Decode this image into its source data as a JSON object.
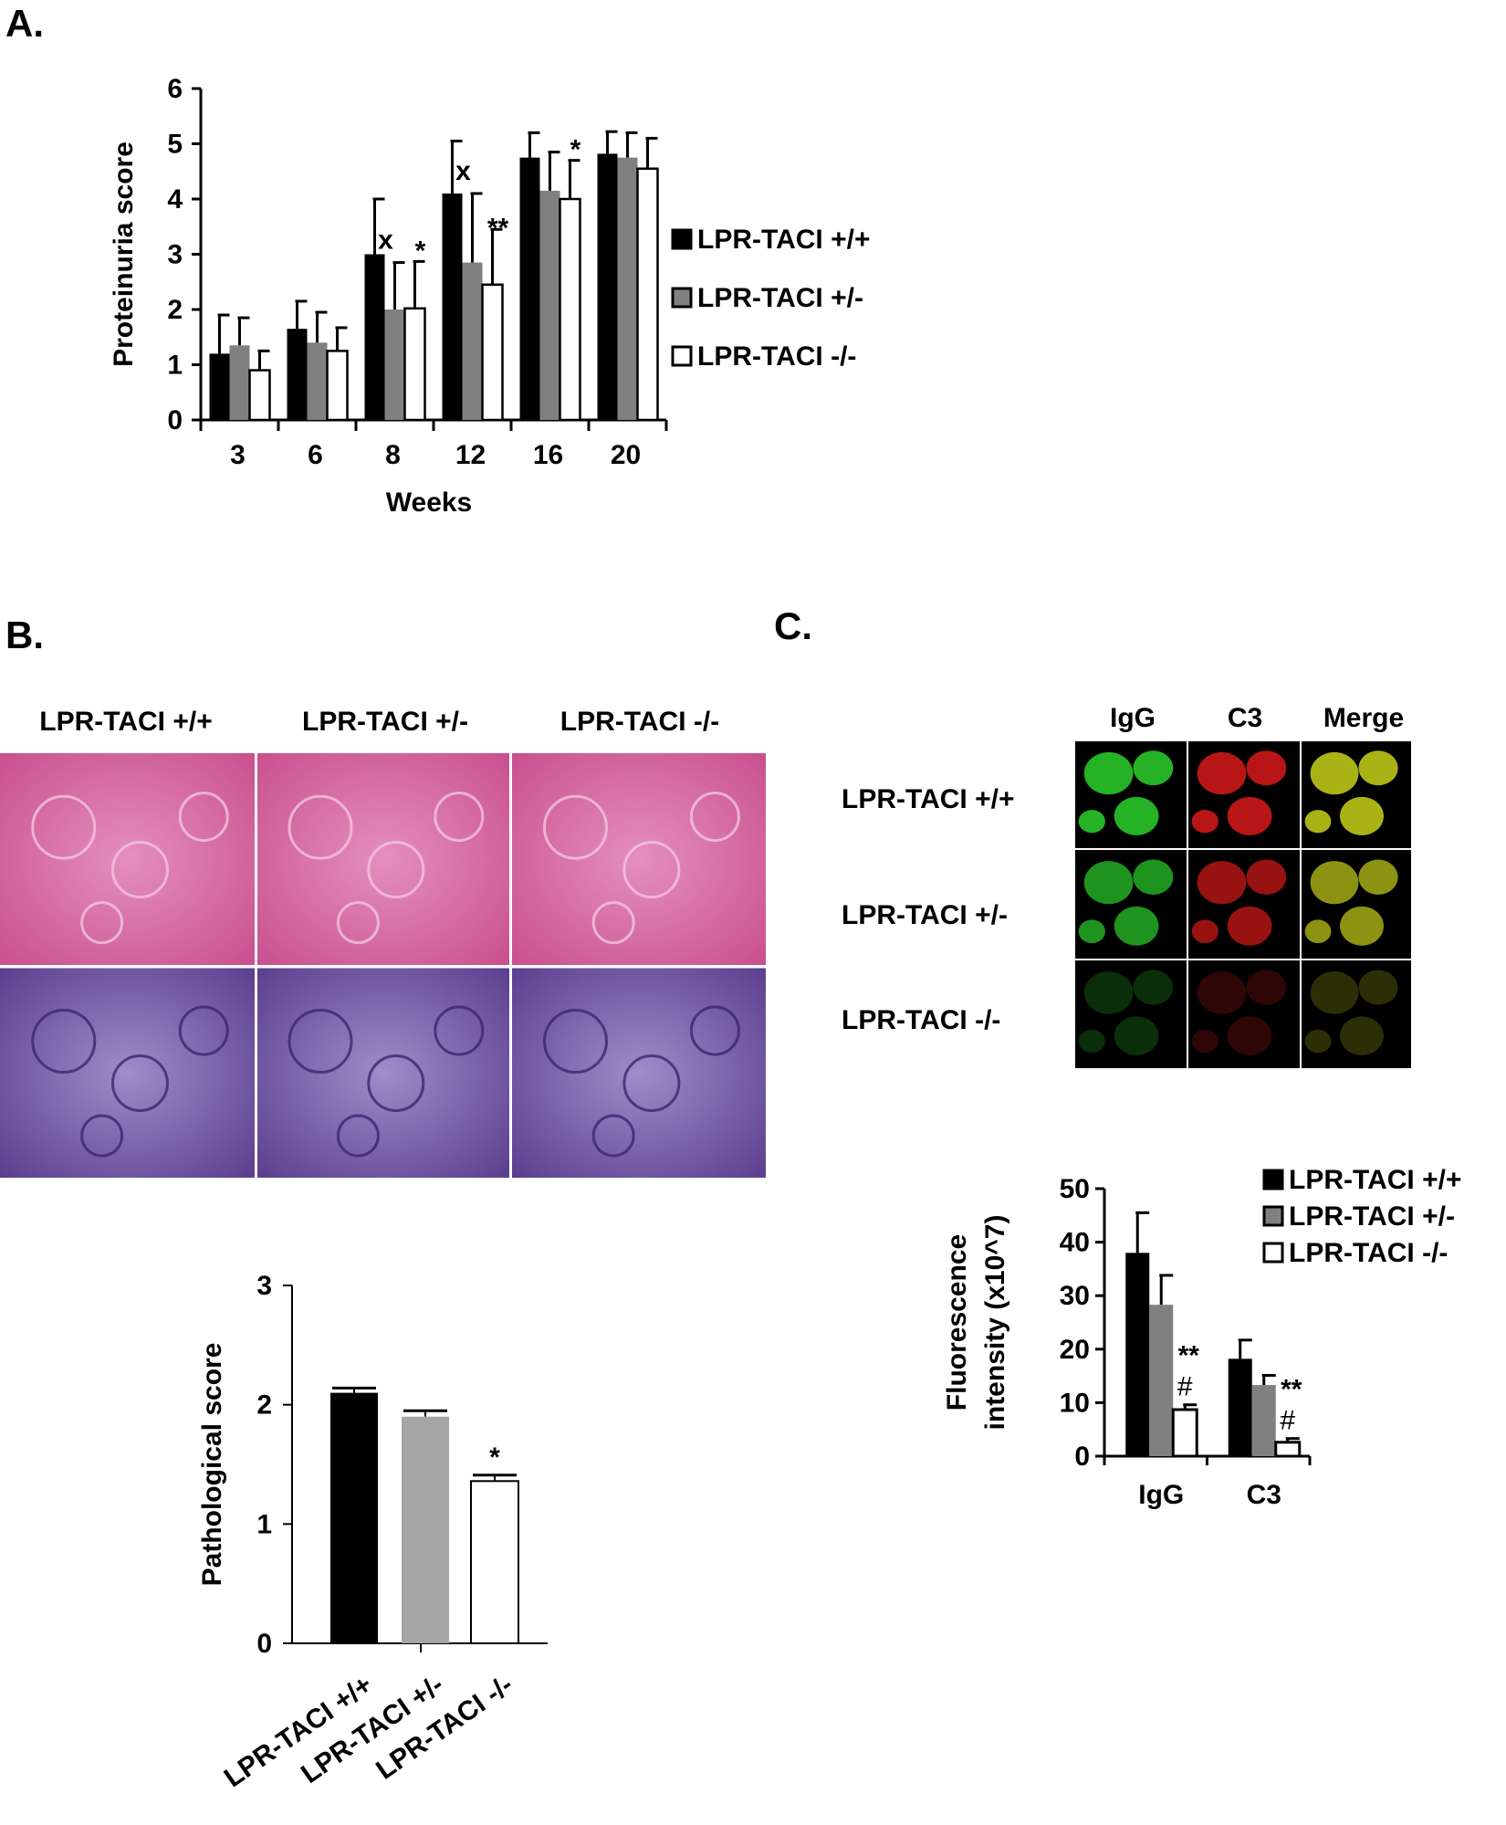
{
  "panels": {
    "a": "A.",
    "b": "B.",
    "c": "C."
  },
  "colors": {
    "wt": "#000000",
    "het": "#808080",
    "ko": "#ffffff",
    "he_stain": "#d9609a",
    "pas_stain": "#7a5aa8",
    "igg": "#2bd12b",
    "c3": "#d81a1a",
    "merge": "#c8d21a"
  },
  "histology": {
    "headers": [
      "LPR-TACI +/+",
      "LPR-TACI +/-",
      "LPR-TACI -/-"
    ]
  },
  "immunofluorescence": {
    "columns": [
      "IgG",
      "C3",
      "Merge"
    ],
    "rows": [
      "LPR-TACI +/+",
      "LPR-TACI +/-",
      "LPR-TACI -/-"
    ]
  },
  "chart_data": [
    {
      "id": "proteinuria",
      "type": "bar",
      "categories": [
        "3",
        "6",
        "8",
        "12",
        "16",
        "20"
      ],
      "xlabel": "Weeks",
      "ylabel": "Proteinuria score",
      "ylim": [
        0,
        6
      ],
      "yticks": [
        "0",
        "1",
        "2",
        "3",
        "4",
        "5",
        "6"
      ],
      "legend_position": "right",
      "series": [
        {
          "name": "LPR-TACI +/+",
          "values": [
            1.2,
            1.65,
            3.0,
            4.1,
            4.75,
            4.82
          ],
          "errors": [
            0.7,
            0.5,
            1.0,
            0.95,
            0.45,
            0.4
          ]
        },
        {
          "name": "LPR-TACI +/-",
          "values": [
            1.35,
            1.4,
            2.0,
            2.85,
            4.15,
            4.75
          ],
          "errors": [
            0.5,
            0.55,
            0.85,
            1.25,
            0.7,
            0.45
          ]
        },
        {
          "name": "LPR-TACI -/-",
          "values": [
            0.9,
            1.25,
            2.02,
            2.45,
            4.0,
            4.55
          ],
          "errors": [
            0.35,
            0.42,
            0.85,
            1.0,
            0.7,
            0.55
          ]
        }
      ],
      "annotations": [
        {
          "category": "8",
          "series": 1,
          "text": "x"
        },
        {
          "category": "8",
          "series": 2,
          "text": "*"
        },
        {
          "category": "12",
          "series": 1,
          "text": "x"
        },
        {
          "category": "12",
          "series": 2,
          "text": "**"
        },
        {
          "category": "16",
          "series": 2,
          "text": "*"
        }
      ]
    },
    {
      "id": "pathological",
      "type": "bar",
      "categories": [
        "LPR-TACI +/+",
        "LPR-TACI +/-",
        "LPR-TACI -/-"
      ],
      "values": [
        2.1,
        1.9,
        1.36
      ],
      "errors": [
        0.04,
        0.05,
        0.05
      ],
      "bar_colors": [
        "#000000",
        "#a6a6a6",
        "#ffffff"
      ],
      "xlabel": "",
      "ylabel": "Pathological score",
      "ylim": [
        0,
        3
      ],
      "yticks": [
        "0",
        "1",
        "2",
        "3"
      ],
      "annotations": [
        {
          "category": "LPR-TACI -/-",
          "text": "*"
        }
      ]
    },
    {
      "id": "fluorescence",
      "type": "bar",
      "categories": [
        "IgG",
        "C3"
      ],
      "xlabel": "",
      "ylabel": "Fluorescence intensity (x10^7)",
      "ylabel_lines": [
        "Fluorescence",
        "intensity (x10^7)"
      ],
      "ylim": [
        0,
        50
      ],
      "yticks": [
        "0",
        "10",
        "20",
        "30",
        "40",
        "50"
      ],
      "legend_position": "top-right",
      "series": [
        {
          "name": "LPR-TACI +/+",
          "values": [
            38,
            18.2
          ],
          "errors": [
            7.5,
            3.5
          ]
        },
        {
          "name": "LPR-TACI +/-",
          "values": [
            28.3,
            13.3
          ],
          "errors": [
            5.5,
            1.8
          ]
        },
        {
          "name": "LPR-TACI -/-",
          "values": [
            8.7,
            2.6
          ],
          "errors": [
            0.9,
            0.7
          ]
        }
      ],
      "annotations": [
        {
          "category": "IgG",
          "series": 2,
          "text": "**",
          "second": "#"
        },
        {
          "category": "C3",
          "series": 2,
          "text": "**",
          "second": "#"
        }
      ]
    }
  ]
}
